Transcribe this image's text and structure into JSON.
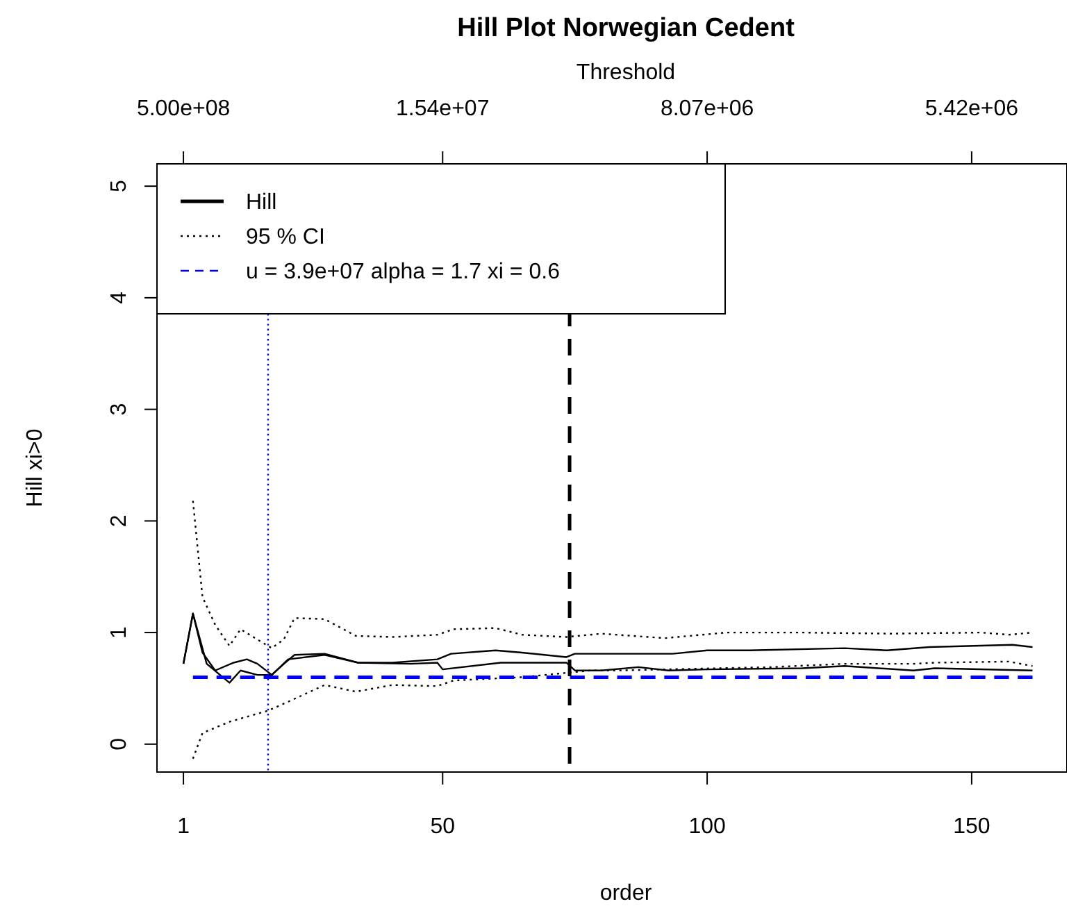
{
  "chart_data": {
    "type": "line",
    "title": "Hill Plot Norwegian Cedent",
    "xlabel": "order",
    "ylabel": "Hill xi>0",
    "x2label": "Threshold",
    "xlim": [
      -4,
      168
    ],
    "xticks": [
      1,
      50,
      100,
      150
    ],
    "annotations": [
      "5.00e+08",
      "1.54e+07",
      "8.07e+06",
      "5.42e+06"
    ],
    "ylim": [
      -0.25,
      5.2
    ],
    "yticks": [
      0,
      1,
      2,
      3,
      4,
      5
    ],
    "grid": false,
    "legend": "top left",
    "series": [
      {
        "name": "Hill",
        "color": "#000000",
        "line_style": "solid",
        "x": [
          1,
          2.8,
          4.6,
          7,
          10.5,
          13,
          15,
          17.7,
          20,
          22,
          27.7,
          34,
          40.5,
          49,
          51.6,
          60,
          65,
          73.4,
          75,
          80,
          85,
          93.5,
          100,
          108,
          126,
          134,
          142,
          157.7,
          161.5
        ],
        "values": [
          0.72,
          1.17,
          0.82,
          0.66,
          0.73,
          0.76,
          0.72,
          0.62,
          0.72,
          0.8,
          0.81,
          0.73,
          0.73,
          0.76,
          0.81,
          0.84,
          0.82,
          0.78,
          0.81,
          0.81,
          0.81,
          0.81,
          0.84,
          0.84,
          0.86,
          0.84,
          0.87,
          0.89,
          0.87
        ]
      },
      {
        "color": "#000000",
        "line_style": "solid",
        "x": [
          1,
          2.8,
          5.4,
          9.7,
          11.8,
          15,
          17.7,
          20.8,
          27.7,
          34,
          44,
          49,
          50,
          61,
          73.4,
          75,
          80,
          87,
          92.7,
          100,
          118,
          126,
          139,
          143,
          161.5
        ],
        "values": [
          0.72,
          1.17,
          0.72,
          0.55,
          0.66,
          0.62,
          0.62,
          0.76,
          0.8,
          0.73,
          0.72,
          0.73,
          0.67,
          0.73,
          0.73,
          0.66,
          0.66,
          0.69,
          0.66,
          0.67,
          0.68,
          0.7,
          0.66,
          0.68,
          0.66
        ]
      },
      {
        "name": "95 % CI",
        "color": "#000000",
        "line_style": "dotted",
        "x": [
          2.8,
          4.6,
          7,
          9.7,
          11.8,
          14.9,
          17.7,
          20,
          22,
          27.7,
          33.6,
          40.5,
          49,
          52,
          60,
          65,
          73.4,
          80,
          92,
          103.7,
          117.6,
          134.6,
          151.8,
          157,
          161.5
        ],
        "values": [
          2.18,
          1.32,
          1.07,
          0.88,
          1.03,
          0.94,
          0.86,
          0.94,
          1.13,
          1.12,
          0.97,
          0.96,
          0.98,
          1.03,
          1.04,
          0.98,
          0.96,
          0.99,
          0.95,
          1.0,
          1.0,
          0.99,
          1.0,
          0.98,
          1.0
        ]
      },
      {
        "color": "#000000",
        "line_style": "dotted",
        "x": [
          2.8,
          4.6,
          9.7,
          17,
          20.8,
          27.7,
          33.6,
          40.5,
          49,
          52,
          65,
          78,
          83,
          92,
          112,
          126,
          139,
          143,
          157,
          161.5
        ],
        "values": [
          -0.13,
          0.1,
          0.2,
          0.3,
          0.38,
          0.53,
          0.47,
          0.53,
          0.52,
          0.57,
          0.6,
          0.66,
          0.66,
          0.67,
          0.69,
          0.72,
          0.72,
          0.73,
          0.74,
          0.7
        ]
      },
      {
        "name": "u = 3.9e+07 alpha = 1.7 xi = 0.6",
        "color": "#0000ff",
        "line_style": "dashed",
        "x": [
          2.8,
          161.5
        ],
        "values": [
          0.6,
          0.6
        ]
      }
    ],
    "ref_lines": [
      {
        "axis": "x",
        "value": 74,
        "color": "#000000",
        "line_style": "dashed"
      },
      {
        "axis": "x",
        "value": 17,
        "color": "#0000ff",
        "line_style": "dotted"
      }
    ]
  }
}
